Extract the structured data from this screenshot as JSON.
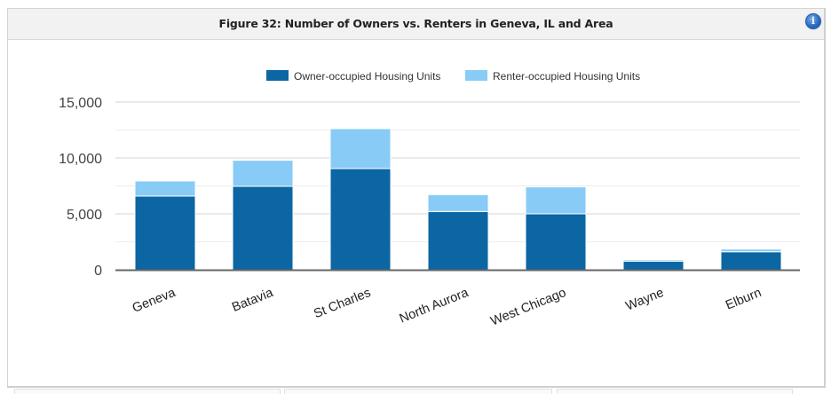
{
  "panel": {
    "title": "Figure 32: Number of Owners vs. Renters in Geneva, IL and Area",
    "info_icon": "info-icon",
    "info_glyph": "i"
  },
  "colors": {
    "owner": "#0b66a3",
    "renter": "#88cbf6",
    "grid": "#dddddd",
    "axis": "#666666"
  },
  "chart_data": {
    "type": "bar",
    "stacked": true,
    "title": "Figure 32: Number of Owners vs. Renters in Geneva, IL and Area",
    "xlabel": "",
    "ylabel": "",
    "categories": [
      "Geneva",
      "Batavia",
      "St Charles",
      "North Aurora",
      "West Chicago",
      "Wayne",
      "Elburn"
    ],
    "series": [
      {
        "name": "Owner-occupied Housing Units",
        "color": "#0b66a3",
        "values": [
          6590,
          7460,
          9050,
          5210,
          5000,
          770,
          1610
        ]
      },
      {
        "name": "Renter-occupied Housing Units",
        "color": "#88cbf6",
        "values": [
          1350,
          2330,
          3570,
          1510,
          2410,
          130,
          240
        ]
      }
    ],
    "ylim": [
      0,
      15000
    ],
    "yticks": [
      0,
      5000,
      10000,
      15000
    ],
    "ytick_labels": [
      "0",
      "5,000",
      "10,000",
      "15,000"
    ],
    "minor_gridlines": [
      2500,
      7500,
      12500
    ],
    "grid": true,
    "legend_position": "top-center"
  }
}
